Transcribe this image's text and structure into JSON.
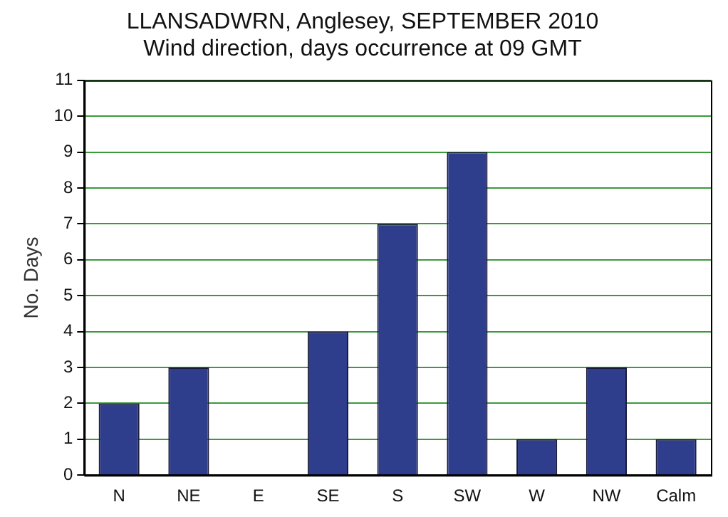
{
  "chart_data": {
    "type": "bar",
    "title": "LLANSADWRN, Anglesey, SEPTEMBER 2010",
    "subtitle": "Wind direction, days occurrence at 09 GMT",
    "ylabel": "No. Days",
    "categories": [
      "N",
      "NE",
      "E",
      "SE",
      "S",
      "SW",
      "W",
      "NW",
      "Calm"
    ],
    "values": [
      2,
      3,
      0,
      4,
      7,
      9,
      1,
      3,
      1
    ],
    "color": "#2e3d8c",
    "ylim": [
      0,
      11
    ],
    "yticks": [
      0,
      1,
      2,
      3,
      4,
      5,
      6,
      7,
      8,
      9,
      10,
      11
    ],
    "grid": "y",
    "legend": false
  }
}
